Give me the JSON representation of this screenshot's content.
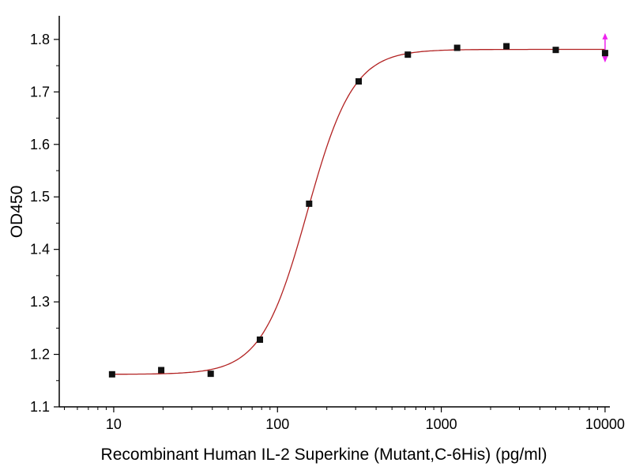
{
  "chart_data": {
    "type": "scatter",
    "title": "",
    "xlabel": "Recombinant Human IL-2 Superkine (Mutant,C-6His) (pg/ml)",
    "ylabel": "OD450",
    "x_scale": "log",
    "x_range": [
      4.65,
      10700
    ],
    "y_range": [
      1.1,
      1.845
    ],
    "x_ticks": [
      10,
      100,
      1000,
      10000
    ],
    "y_ticks": [
      1.1,
      1.2,
      1.3,
      1.4,
      1.5,
      1.6,
      1.7,
      1.8
    ],
    "grid": false,
    "legend": "none",
    "points": [
      [
        9.77,
        1.162
      ],
      [
        19.5,
        1.17
      ],
      [
        39.1,
        1.163
      ],
      [
        78.1,
        1.228
      ],
      [
        156,
        1.487
      ],
      [
        313,
        1.72
      ],
      [
        625,
        1.771
      ],
      [
        1250,
        1.784
      ],
      [
        2500,
        1.787
      ],
      [
        5000,
        1.78
      ],
      [
        10000,
        1.774
      ]
    ],
    "fit": {
      "model": "4PL sigmoid",
      "bottom": 1.162,
      "top": 1.781,
      "ec50": 152,
      "hill": 3.1
    },
    "error_arrow": {
      "x": 10000,
      "y_low": 1.756,
      "y_high": 1.812
    },
    "colors": {
      "curve": "#b22222",
      "marker": "#111111",
      "arrow": "#ee22ee",
      "axis": "#000000"
    }
  }
}
